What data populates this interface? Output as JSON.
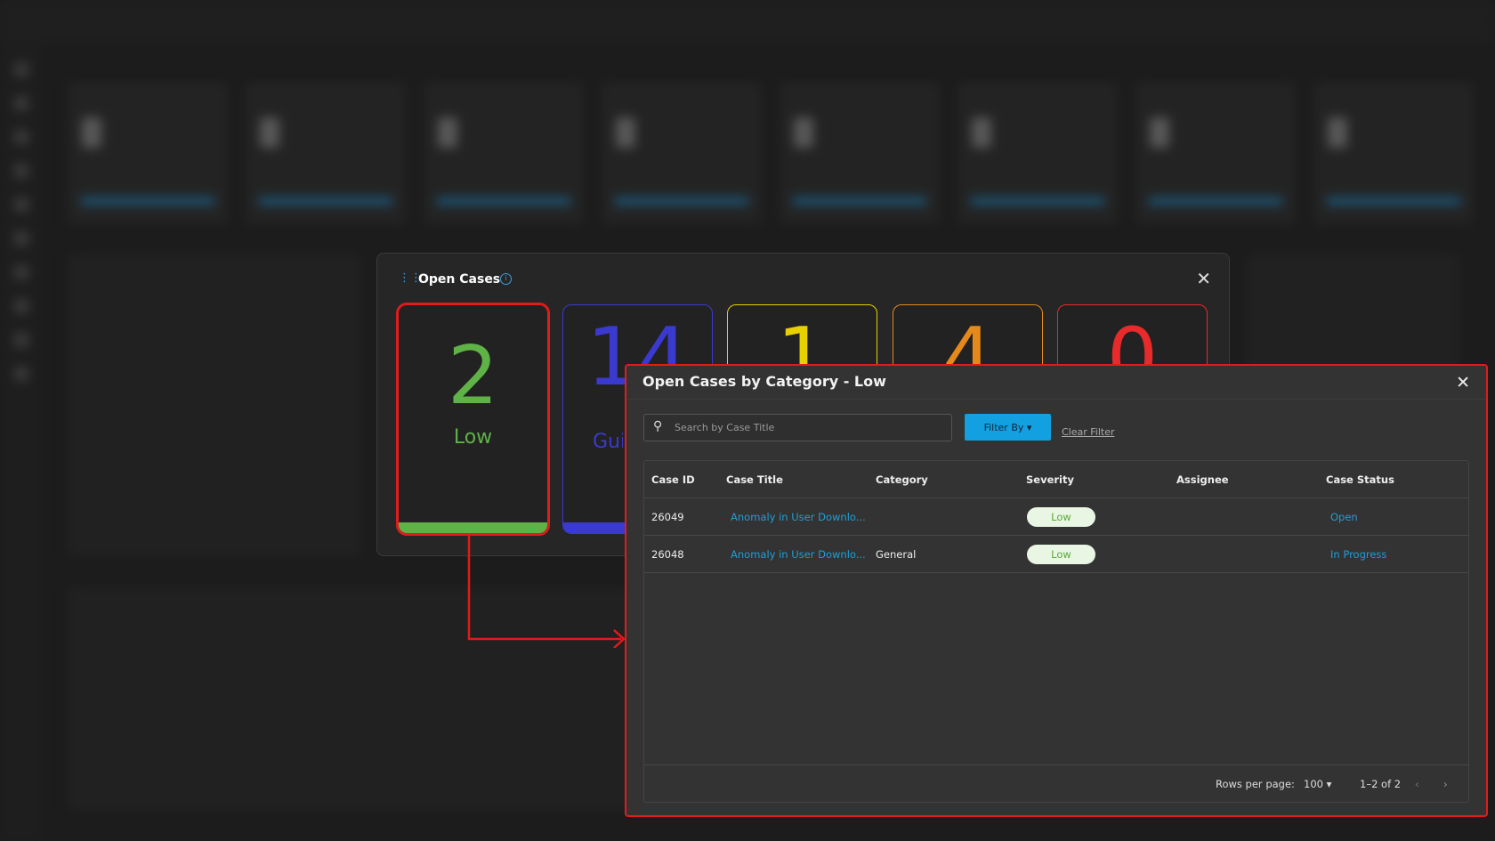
{
  "open_cases": {
    "title": "Open Cases",
    "cards": [
      {
        "count": "2",
        "label": "Low",
        "color": "#5fb246"
      },
      {
        "count": "14",
        "label": "Guidance",
        "color": "#3a3ad0"
      },
      {
        "count": "1",
        "label": "",
        "color": "#e6d000"
      },
      {
        "count": "4",
        "label": "",
        "color": "#e58a1a"
      },
      {
        "count": "0",
        "label": "",
        "color": "#e82a2a"
      }
    ]
  },
  "modal": {
    "title": "Open Cases by Category - Low",
    "search_placeholder": "Search by Case Title",
    "filter_label": "Filter By",
    "clear_label": "Clear Filter",
    "columns": [
      "Case ID",
      "Case Title",
      "Category",
      "Severity",
      "Assignee",
      "Case Status"
    ],
    "rows": [
      {
        "id": "26049",
        "title": "Anomaly in User Downlo...",
        "category": "",
        "severity": "Low",
        "assignee": "",
        "status": "Open"
      },
      {
        "id": "26048",
        "title": "Anomaly in User Downlo...",
        "category": "General",
        "severity": "Low",
        "assignee": "",
        "status": "In Progress"
      }
    ],
    "footer": {
      "rows_per_page_label": "Rows per page:",
      "rows_per_page": "100",
      "range": "1–2 of 2"
    }
  },
  "colors": {
    "highlight": "#e21b1b",
    "accent": "#13a0e0"
  }
}
